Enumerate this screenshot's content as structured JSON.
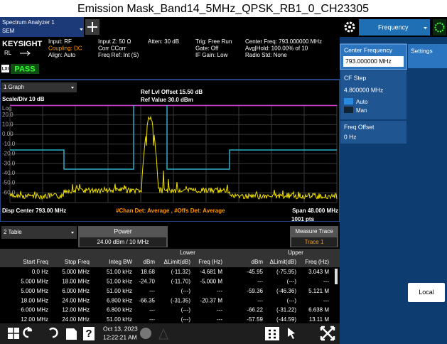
{
  "title": "Emission Mask_Band14_5MHz_QPSK_RB1_0_CH23305",
  "tabs": {
    "app": "Spectrum Analyzer 1",
    "mode": "SEM",
    "menu": "Frequency"
  },
  "status": {
    "brand": "KEYSIGHT",
    "rl": "RL",
    "lxi": "LXI",
    "pass": "PASS",
    "columns": [
      [
        "Input: RF",
        "Coupling: DC",
        "Align: Auto"
      ],
      [
        "Input Z: 50 Ω",
        "Corr CCorr",
        "Freq Ref: Int (S)"
      ],
      [
        "Atten: 30 dB"
      ],
      [
        "Trig: Free Run",
        "Gate: Off",
        "IF Gain: Low"
      ],
      [
        "Center Freq: 793.000000 MHz",
        "Avg|Hold: 100.00% of 10",
        "Radio Std: None"
      ]
    ]
  },
  "graph": {
    "window": "1 Graph",
    "ref_offset": "Ref Lvl Offset 15.50 dB",
    "ref_value": "Ref Value 30.0 dBm",
    "scale": "Scale/Div 10 dB",
    "log": "Log",
    "ytick_labels": [
      "20.0",
      "10.0",
      "0.00",
      "-10.0",
      "-20.0",
      "-30.0",
      "-40.0",
      "-50.0",
      "-60.0"
    ],
    "center": "Disp Center 793.00 MHz",
    "detector": "#Chan Det: Average , #Offs Det: Average",
    "span": "Span 48.000 MHz",
    "points": "1001 pts"
  },
  "table": {
    "window": "2 Table",
    "power_label": "Power",
    "power": "24.00 dBm / 10 MHz",
    "measure_label": "Measure Trace",
    "measure": "Trace 1",
    "groups": [
      "Lower",
      "Upper"
    ],
    "headers": [
      "Start Freq",
      "Stop Freq",
      "Integ BW",
      "dBm",
      "ΔLimit(dB)",
      "Freq (Hz)",
      "dBm",
      "ΔLimit(dB)",
      "Freq (Hz)"
    ],
    "rows": [
      [
        "0.0 Hz",
        "5.000 MHz",
        "51.00 kHz",
        "18.68",
        "(-11.32)",
        "-4.681 M",
        "-45.95",
        "(-75.95)",
        "3.043 M"
      ],
      [
        "5.000 MHz",
        "18.00 MHz",
        "51.00 kHz",
        "-24.70",
        "(-11.70)",
        "-5.000 M",
        "---",
        "(---)",
        "---"
      ],
      [
        "5.000 MHz",
        "6.000 MHz",
        "51.00 kHz",
        "---",
        "(---)",
        "---",
        "-59.36",
        "(-46.36)",
        "5.121 M"
      ],
      [
        "18.00 MHz",
        "24.00 MHz",
        "6.800 kHz",
        "-66.35",
        "(-31.35)",
        "-20.37 M",
        "---",
        "(---)",
        "---"
      ],
      [
        "6.000 MHz",
        "12.00 MHz",
        "6.800 kHz",
        "---",
        "(---)",
        "---",
        "-66.22",
        "(-31.22)",
        "6.638 M"
      ],
      [
        "12.00 MHz",
        "24.00 MHz",
        "51.00 kHz",
        "---",
        "(---)",
        "---",
        "-57.59",
        "(-44.59)",
        "13.11 M"
      ]
    ]
  },
  "panel": {
    "center_label": "Center Frequency",
    "center_value": "793.000000 MHz",
    "settings": "Settings",
    "cf_step_label": "CF Step",
    "cf_step_value": "4.800000 MHz",
    "auto": "Auto",
    "man": "Man",
    "offset_label": "Freq Offset",
    "offset_value": "0 Hz",
    "local": "Local"
  },
  "taskbar": {
    "help": "?",
    "date": "Oct 13, 2023",
    "time": "12:22:21 AM"
  }
}
